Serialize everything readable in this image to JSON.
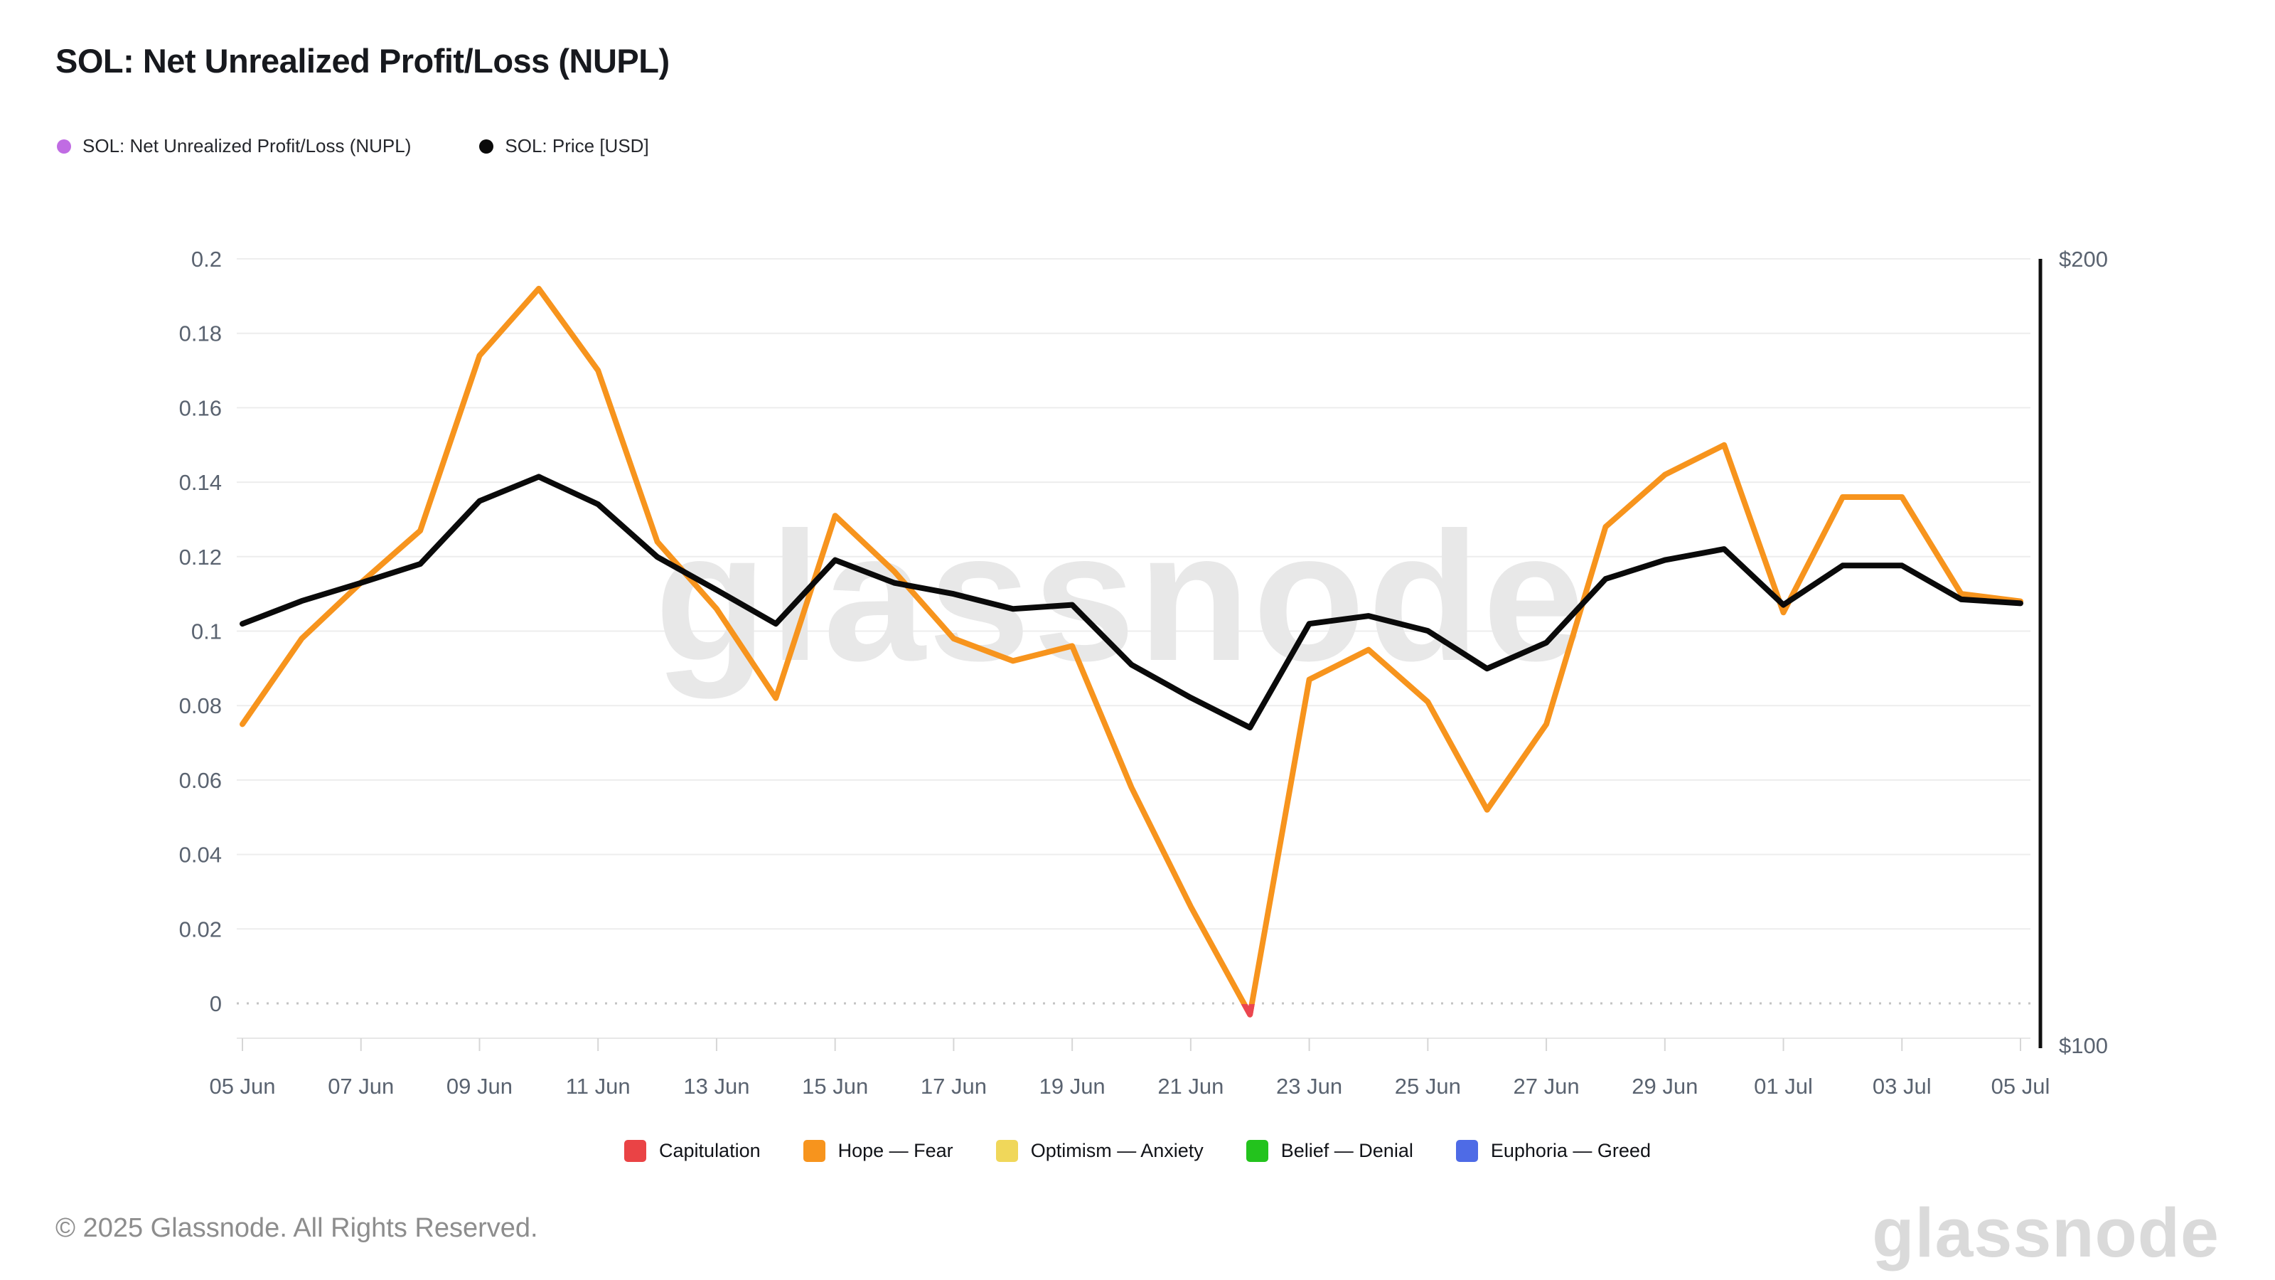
{
  "header": {
    "title": "SOL: Net Unrealized Profit/Loss (NUPL)",
    "legend": [
      {
        "label": "SOL: Net Unrealized Profit/Loss (NUPL)",
        "color": "#c06ce3"
      },
      {
        "label": "SOL: Price [USD]",
        "color": "#0a0a0a"
      }
    ]
  },
  "chart_data": {
    "type": "line",
    "x": [
      "05 Jun",
      "06 Jun",
      "07 Jun",
      "08 Jun",
      "09 Jun",
      "10 Jun",
      "11 Jun",
      "12 Jun",
      "13 Jun",
      "14 Jun",
      "15 Jun",
      "16 Jun",
      "17 Jun",
      "18 Jun",
      "19 Jun",
      "20 Jun",
      "21 Jun",
      "22 Jun",
      "23 Jun",
      "24 Jun",
      "25 Jun",
      "26 Jun",
      "27 Jun",
      "28 Jun",
      "29 Jun",
      "30 Jun",
      "01 Jul",
      "02 Jul",
      "03 Jul",
      "04 Jul",
      "05 Jul"
    ],
    "x_tick_labels": [
      "05 Jun",
      "07 Jun",
      "09 Jun",
      "11 Jun",
      "13 Jun",
      "15 Jun",
      "17 Jun",
      "19 Jun",
      "21 Jun",
      "23 Jun",
      "25 Jun",
      "27 Jun",
      "29 Jun",
      "01 Jul",
      "03 Jul",
      "05 Jul"
    ],
    "series": [
      {
        "name": "SOL: Net Unrealized Profit/Loss (NUPL)",
        "axis": "left",
        "color": "#f7941d",
        "below_zero_color": "#eb4650",
        "values": [
          0.075,
          0.098,
          0.113,
          0.127,
          0.174,
          0.192,
          0.17,
          0.124,
          0.106,
          0.082,
          0.131,
          0.116,
          0.098,
          0.092,
          0.096,
          0.058,
          0.026,
          -0.003,
          0.087,
          0.095,
          0.081,
          0.052,
          0.075,
          0.128,
          0.142,
          0.15,
          0.105,
          0.136,
          0.136,
          0.11,
          0.108
        ]
      },
      {
        "name": "SOL: Price [USD]",
        "axis": "right",
        "color": "#0a0a0a",
        "values": [
          153.6,
          156.5,
          158.8,
          161.2,
          169.2,
          172.3,
          168.8,
          162.1,
          157.9,
          153.6,
          161.7,
          158.8,
          157.4,
          155.5,
          156.0,
          148.4,
          144.2,
          140.4,
          153.6,
          154.6,
          152.7,
          147.9,
          151.2,
          159.3,
          161.7,
          163.1,
          156.0,
          161.0,
          161.0,
          156.7,
          156.2
        ]
      }
    ],
    "left_axis": {
      "ticks": [
        {
          "value": 0.2,
          "label": "0.2"
        },
        {
          "value": 0.18,
          "label": "0.18"
        },
        {
          "value": 0.16,
          "label": "0.16"
        },
        {
          "value": 0.14,
          "label": "0.14"
        },
        {
          "value": 0.12,
          "label": "0.12"
        },
        {
          "value": 0.1,
          "label": "0.1"
        },
        {
          "value": 0.08,
          "label": "0.08"
        },
        {
          "value": 0.06,
          "label": "0.06"
        },
        {
          "value": 0.04,
          "label": "0.04"
        },
        {
          "value": 0.02,
          "label": "0.02"
        },
        {
          "value": 0,
          "label": "0"
        }
      ],
      "zero_line_dotted": true,
      "grid": true
    },
    "right_axis": {
      "range": [
        100,
        200
      ],
      "ticks": [
        {
          "value": 200,
          "label": "$200"
        },
        {
          "value": 100,
          "label": "$100"
        }
      ]
    },
    "watermark": "glassnode",
    "legend_position": "top-left"
  },
  "zones_legend": [
    {
      "label": "Capitulation",
      "color": "#ea4345"
    },
    {
      "label": "Hope — Fear",
      "color": "#f7941d"
    },
    {
      "label": "Optimism — Anxiety",
      "color": "#f0d75a"
    },
    {
      "label": "Belief — Denial",
      "color": "#23c31d"
    },
    {
      "label": "Euphoria — Greed",
      "color": "#4e6be6"
    }
  ],
  "footer": {
    "copyright": "© 2025 Glassnode. All Rights Reserved.",
    "wordmark": "glassnode"
  }
}
